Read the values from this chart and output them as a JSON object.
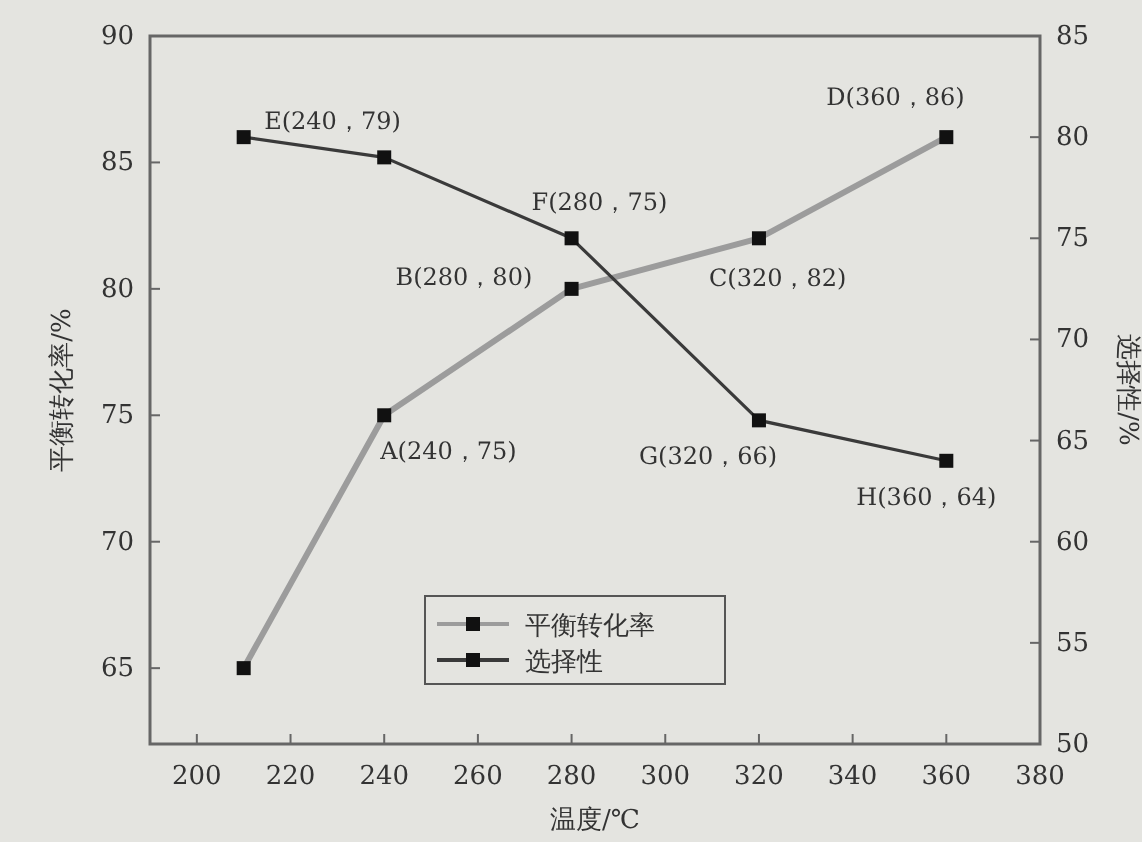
{
  "chart_data": {
    "type": "line",
    "xlabel": "温度/℃",
    "ylabel": "平衡转化率/%",
    "y2label": "选择性/%",
    "xlim": [
      190,
      380
    ],
    "xticks": [
      200,
      220,
      240,
      260,
      280,
      300,
      320,
      340,
      360,
      380
    ],
    "ylim": [
      62,
      90
    ],
    "yticks": [
      65,
      70,
      75,
      80,
      85,
      90
    ],
    "y2lim": [
      50,
      85
    ],
    "y2ticks": [
      50,
      55,
      60,
      65,
      70,
      75,
      80,
      85
    ],
    "marker": "square",
    "legend": "bottom",
    "grid": false,
    "series": [
      {
        "name": "平衡转化率",
        "color": "#9c9c9c",
        "x": [
          210,
          240,
          280,
          320,
          360
        ],
        "values": [
          65,
          75,
          80,
          82,
          86
        ],
        "value_labels": [
          null,
          "A(240，75)",
          "B(280，80)",
          "C(320，82)",
          "D(360，86)"
        ]
      },
      {
        "name": "选择性",
        "color": "#3a3a3a",
        "axis": "y2",
        "x": [
          210,
          240,
          280,
          320,
          360
        ],
        "values": [
          80,
          79,
          75,
          66,
          64
        ],
        "value_labels": [
          null,
          "E(240，79)",
          "F(280，75)",
          "G(320，66)",
          "H(360，64)"
        ]
      }
    ]
  }
}
